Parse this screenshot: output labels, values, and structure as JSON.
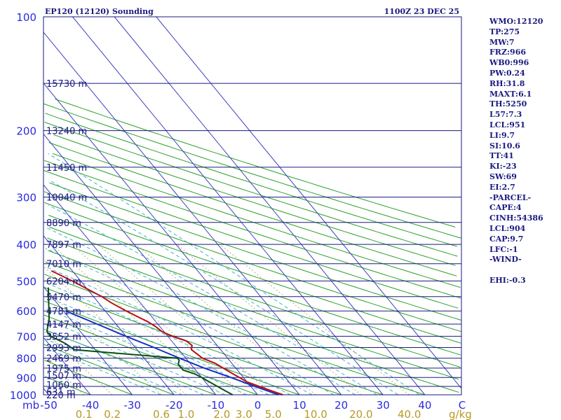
{
  "title": "EP120 (12120) Sounding",
  "valid_time": "1100Z 23 DEC 25",
  "indices": [
    "WMO:12120",
    "TP:275",
    "MW:7",
    "FRZ:966",
    "WB0:996",
    "PW:0.24",
    "RH:31.8",
    "MAXT:6.1",
    "TH:5250",
    "L57:7.3",
    "LCL:951",
    "LI:9.7",
    "SI:10.6",
    "TT:41",
    "KI:-23",
    "SW:69",
    "EI:2.7",
    "-PARCEL-",
    "CAPE:4",
    "CINH:54386",
    "LCL:904",
    "CAP:9.7",
    "LFC:-1",
    "-WIND-",
    "",
    "EHI:-0.3"
  ],
  "colors": {
    "temperature": "#b81010",
    "dewpoint": "#0a5010",
    "parcel": "#1530c0",
    "isobar": "#1a1a80",
    "isotherm": "#4040c0",
    "dry_adiabat": "#2aa02a",
    "moist_adiabat": "#40b0d0",
    "mixing_ratio": "#b0b070"
  },
  "chart_data": {
    "type": "skew-t",
    "title": "EP120 (12120) Sounding",
    "time": "1100Z 23 DEC 25",
    "xlabel": "C",
    "mixing_ratio_unit": "g/kg",
    "y_unit": "mb",
    "pressure_ticks": [
      100,
      200,
      300,
      400,
      500,
      600,
      700,
      800,
      900,
      1000
    ],
    "temperature_ticks": [
      -50,
      -40,
      -30,
      -20,
      -10,
      0,
      10,
      20,
      30,
      40
    ],
    "mixing_ratio_ticks": [
      "0.1",
      "0.2",
      "0.6",
      "1.0",
      "2.0",
      "3.0",
      "5.0",
      "10.0",
      "20.0",
      "40.0"
    ],
    "mixing_ratio_values": [
      0.1,
      0.2,
      0.6,
      1.0,
      2.0,
      3.0,
      5.0,
      10.0,
      20.0,
      40.0
    ],
    "height_labels": [
      {
        "p": 1000,
        "label": "220 m"
      },
      {
        "p": 980,
        "label": "631 m"
      },
      {
        "p": 940,
        "label": "1060 m"
      },
      {
        "p": 890,
        "label": "1507 m"
      },
      {
        "p": 850,
        "label": "1975 m"
      },
      {
        "p": 800,
        "label": "2469 m"
      },
      {
        "p": 750,
        "label": "2993 m"
      },
      {
        "p": 700,
        "label": "3552 m"
      },
      {
        "p": 650,
        "label": "4147 m"
      },
      {
        "p": 600,
        "label": "4781 m"
      },
      {
        "p": 550,
        "label": "5470 m"
      },
      {
        "p": 500,
        "label": "6204 m"
      },
      {
        "p": 450,
        "label": "7010 m"
      },
      {
        "p": 400,
        "label": "7897 m"
      },
      {
        "p": 350,
        "label": "8890 m"
      },
      {
        "p": 300,
        "label": "10040 m"
      },
      {
        "p": 250,
        "label": "11450 m"
      },
      {
        "p": 200,
        "label": "13240 m"
      },
      {
        "p": 150,
        "label": "15730 m"
      }
    ],
    "temperature_profile": [
      {
        "p": 1000,
        "t": 6
      },
      {
        "p": 975,
        "t": 4
      },
      {
        "p": 950,
        "t": 2
      },
      {
        "p": 925,
        "t": 0
      },
      {
        "p": 900,
        "t": -1
      },
      {
        "p": 875,
        "t": -2
      },
      {
        "p": 850,
        "t": -3
      },
      {
        "p": 825,
        "t": -4
      },
      {
        "p": 800,
        "t": -6
      },
      {
        "p": 780,
        "t": -6.5
      },
      {
        "p": 760,
        "t": -7
      },
      {
        "p": 740,
        "t": -6
      },
      {
        "p": 720,
        "t": -6.5
      },
      {
        "p": 700,
        "t": -9
      },
      {
        "p": 680,
        "t": -10.5
      },
      {
        "p": 660,
        "t": -11
      },
      {
        "p": 640,
        "t": -12
      },
      {
        "p": 620,
        "t": -13.5
      },
      {
        "p": 600,
        "t": -15
      },
      {
        "p": 570,
        "t": -17
      },
      {
        "p": 550,
        "t": -18
      },
      {
        "p": 500,
        "t": -22
      },
      {
        "p": 470,
        "t": -25
      },
      {
        "p": 450,
        "t": -27
      },
      {
        "p": 420,
        "t": -30
      },
      {
        "p": 400,
        "t": -32
      },
      {
        "p": 370,
        "t": -36
      },
      {
        "p": 350,
        "t": -38
      },
      {
        "p": 330,
        "t": -41
      },
      {
        "p": 320,
        "t": -43
      },
      {
        "p": 310,
        "t": -45
      },
      {
        "p": 300,
        "t": -46
      },
      {
        "p": 290,
        "t": -47
      },
      {
        "p": 280,
        "t": -48
      },
      {
        "p": 270,
        "t": -49
      },
      {
        "p": 260,
        "t": -50
      },
      {
        "p": 250,
        "t": -51
      },
      {
        "p": 240,
        "t": -52
      },
      {
        "p": 230,
        "t": -53
      },
      {
        "p": 220,
        "t": -54
      },
      {
        "p": 210,
        "t": -55
      },
      {
        "p": 200,
        "t": -56
      },
      {
        "p": 175,
        "t": -57
      },
      {
        "p": 150,
        "t": -58
      },
      {
        "p": 125,
        "t": -59
      },
      {
        "p": 100,
        "t": -60
      }
    ],
    "dewpoint_profile": [
      {
        "p": 1000,
        "td": -6
      },
      {
        "p": 975,
        "td": -7
      },
      {
        "p": 950,
        "td": -8
      },
      {
        "p": 925,
        "td": -9
      },
      {
        "p": 900,
        "td": -10
      },
      {
        "p": 880,
        "td": -11
      },
      {
        "p": 860,
        "td": -13
      },
      {
        "p": 850,
        "td": -13
      },
      {
        "p": 830,
        "td": -13
      },
      {
        "p": 810,
        "td": -12
      },
      {
        "p": 800,
        "td": -12
      },
      {
        "p": 760,
        "td": -35
      },
      {
        "p": 730,
        "td": -36
      },
      {
        "p": 700,
        "td": -38
      },
      {
        "p": 680,
        "td": -38
      },
      {
        "p": 650,
        "td": -40
      },
      {
        "p": 630,
        "td": -35
      },
      {
        "p": 600,
        "td": -37
      },
      {
        "p": 580,
        "td": -38
      },
      {
        "p": 560,
        "td": -38
      },
      {
        "p": 550,
        "td": -39
      },
      {
        "p": 520,
        "td": -29
      },
      {
        "p": 500,
        "td": -29
      },
      {
        "p": 470,
        "td": -29
      },
      {
        "p": 450,
        "td": -31
      },
      {
        "p": 430,
        "td": -33
      },
      {
        "p": 410,
        "td": -36
      },
      {
        "p": 400,
        "td": -36
      },
      {
        "p": 385,
        "td": -39
      },
      {
        "p": 375,
        "td": -40
      },
      {
        "p": 360,
        "td": -42
      },
      {
        "p": 340,
        "td": -47
      },
      {
        "p": 325,
        "td": -50
      },
      {
        "p": 310,
        "td": -52
      },
      {
        "p": 300,
        "td": -53
      },
      {
        "p": 290,
        "td": -52
      },
      {
        "p": 270,
        "td": -55
      },
      {
        "p": 255,
        "td": -56
      },
      {
        "p": 240,
        "td": -57
      },
      {
        "p": 228,
        "td": -63
      },
      {
        "p": 215,
        "td": -70
      },
      {
        "p": 200,
        "td": -72
      },
      {
        "p": 180,
        "td": -74
      },
      {
        "p": 160,
        "td": -76
      },
      {
        "p": 140,
        "td": -77
      },
      {
        "p": 120,
        "td": -78
      },
      {
        "p": 105,
        "td": -79
      },
      {
        "p": 100,
        "td": -79
      }
    ],
    "parcel_profile": [
      {
        "p": 1000,
        "t": 5
      },
      {
        "p": 950,
        "t": 1
      },
      {
        "p": 900,
        "t": -3
      },
      {
        "p": 850,
        "t": -7.5
      },
      {
        "p": 800,
        "t": -11.5
      },
      {
        "p": 750,
        "t": -15.5
      },
      {
        "p": 700,
        "t": -20
      },
      {
        "p": 650,
        "t": -24.5
      },
      {
        "p": 600,
        "t": -29.5
      },
      {
        "p": 550,
        "t": -34.5
      },
      {
        "p": 500,
        "t": -40
      },
      {
        "p": 450,
        "t": -46
      },
      {
        "p": 400,
        "t": -53
      },
      {
        "p": 350,
        "t": -60.5
      },
      {
        "p": 300,
        "t": -69
      },
      {
        "p": 250,
        "t": -79
      },
      {
        "p": 200,
        "t": -91
      },
      {
        "p": 150,
        "t": -105.5
      },
      {
        "p": 100,
        "t": -126
      }
    ]
  }
}
